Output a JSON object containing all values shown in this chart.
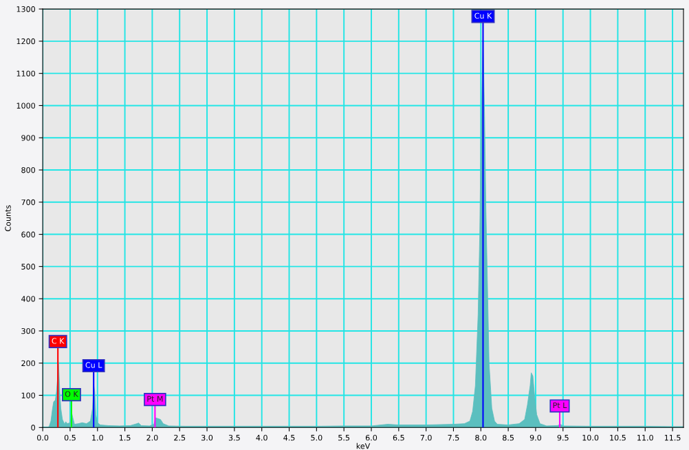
{
  "chart_data": {
    "type": "area",
    "xlabel": "keV",
    "ylabel": "Counts",
    "x": [
      0.0,
      0.1,
      0.12,
      0.15,
      0.18,
      0.2,
      0.23,
      0.25,
      0.27,
      0.28,
      0.29,
      0.31,
      0.33,
      0.36,
      0.4,
      0.42,
      0.45,
      0.5,
      0.52,
      0.53,
      0.55,
      0.58,
      0.65,
      0.72,
      0.8,
      0.87,
      0.91,
      0.93,
      0.95,
      0.97,
      1.0,
      1.05,
      1.2,
      1.4,
      1.6,
      1.72,
      1.75,
      1.8,
      1.95,
      2.03,
      2.06,
      2.1,
      2.15,
      2.2,
      2.3,
      2.6,
      3.0,
      3.5,
      4.0,
      4.5,
      5.0,
      5.5,
      6.0,
      6.3,
      6.5,
      7.0,
      7.5,
      7.7,
      7.8,
      7.85,
      7.9,
      7.95,
      7.98,
      8.0,
      8.02,
      8.04,
      8.05,
      8.07,
      8.09,
      8.12,
      8.15,
      8.2,
      8.25,
      8.3,
      8.5,
      8.7,
      8.8,
      8.85,
      8.9,
      8.92,
      8.95,
      8.98,
      9.02,
      9.08,
      9.2,
      9.4,
      9.45,
      9.5,
      10.0,
      10.5,
      11.0,
      11.5,
      11.7
    ],
    "series": [
      {
        "color": "#5bbfbf",
        "values": [
          0,
          0,
          5,
          20,
          60,
          80,
          85,
          110,
          150,
          210,
          195,
          120,
          60,
          25,
          10,
          18,
          12,
          15,
          35,
          45,
          30,
          10,
          12,
          15,
          12,
          20,
          60,
          135,
          110,
          40,
          15,
          8,
          6,
          5,
          6,
          12,
          14,
          6,
          5,
          10,
          30,
          28,
          25,
          12,
          5,
          4,
          4,
          4,
          4,
          4,
          4,
          5,
          5,
          10,
          8,
          8,
          10,
          12,
          20,
          50,
          130,
          350,
          600,
          880,
          1050,
          1220,
          1130,
          950,
          700,
          450,
          200,
          60,
          20,
          10,
          8,
          12,
          25,
          70,
          130,
          170,
          160,
          100,
          40,
          12,
          5,
          6,
          10,
          5,
          4,
          4,
          4,
          3,
          3
        ]
      }
    ],
    "xlim": [
      0,
      11.7
    ],
    "xticks": [
      {
        "value": 0,
        "label": "0.0"
      },
      {
        "value": 0.5,
        "label": "0.5"
      },
      {
        "value": 1,
        "label": "1.0"
      },
      {
        "value": 1.5,
        "label": "1.5"
      },
      {
        "value": 2,
        "label": "2.0"
      },
      {
        "value": 2.5,
        "label": "2.5"
      },
      {
        "value": 3,
        "label": "3.0"
      },
      {
        "value": 3.5,
        "label": "3.5"
      },
      {
        "value": 4,
        "label": "4.0"
      },
      {
        "value": 4.5,
        "label": "4.5"
      },
      {
        "value": 5,
        "label": "5.0"
      },
      {
        "value": 5.5,
        "label": "5.5"
      },
      {
        "value": 6,
        "label": "6.0"
      },
      {
        "value": 6.5,
        "label": "6.5"
      },
      {
        "value": 7,
        "label": "7.0"
      },
      {
        "value": 7.5,
        "label": "7.5"
      },
      {
        "value": 8,
        "label": "8.0"
      },
      {
        "value": 8.5,
        "label": "8.5"
      },
      {
        "value": 9,
        "label": "9.0"
      },
      {
        "value": 9.5,
        "label": "9.5"
      },
      {
        "value": 10,
        "label": "10.0"
      },
      {
        "value": 10.5,
        "label": "10.5"
      },
      {
        "value": 11,
        "label": "11.0"
      },
      {
        "value": 11.5,
        "label": "11.5"
      }
    ],
    "ylim": [
      0,
      1300
    ],
    "yticks": [
      0,
      100,
      200,
      300,
      400,
      500,
      600,
      700,
      800,
      900,
      1000,
      1100,
      1200,
      1300
    ],
    "grid": true,
    "ref_lines": [
      {
        "axis": "x",
        "value": 0.277,
        "label": "C K",
        "color": "#ff0000"
      },
      {
        "axis": "x",
        "value": 0.525,
        "label": "O K",
        "color": "#00ff00"
      },
      {
        "axis": "x",
        "value": 0.93,
        "label": "Cu L",
        "color": "#0000ff"
      },
      {
        "axis": "x",
        "value": 2.05,
        "label": "Pt M",
        "color": "#ff00ff"
      },
      {
        "axis": "x",
        "value": 8.04,
        "label": "Cu K",
        "color": "#0000ff"
      },
      {
        "axis": "x",
        "value": 9.44,
        "label": "Pt L",
        "color": "#ff00ff"
      }
    ]
  }
}
